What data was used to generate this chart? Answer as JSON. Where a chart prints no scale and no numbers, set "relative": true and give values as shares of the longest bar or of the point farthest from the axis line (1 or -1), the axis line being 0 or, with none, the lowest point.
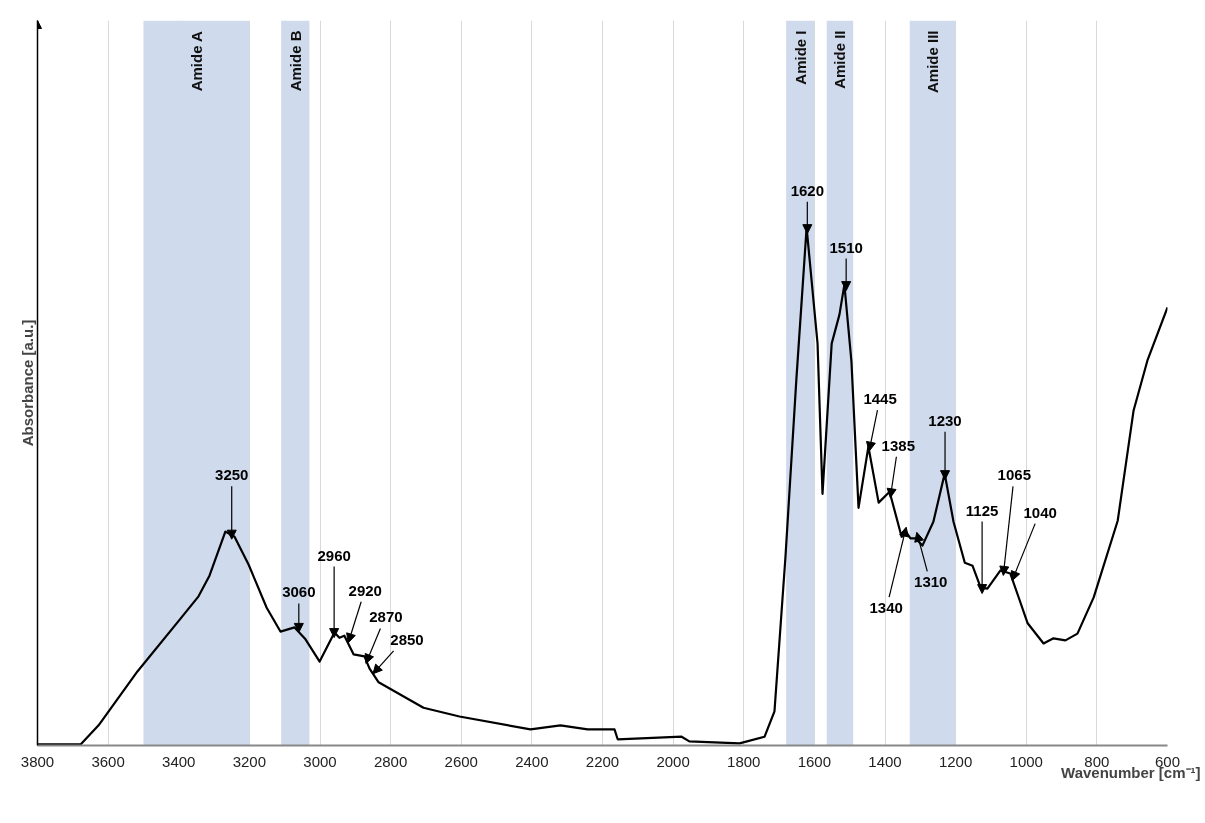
{
  "chart_data": {
    "type": "line",
    "relative": true,
    "xlabel": "Wavenumber [cm⁻¹]",
    "ylabel": "Absorbance [a.u.]",
    "xlim": [
      3800,
      600
    ],
    "xticks": [
      3800,
      3600,
      3400,
      3200,
      3000,
      2800,
      2600,
      2400,
      2200,
      2000,
      1800,
      1600,
      1400,
      1200,
      1000,
      800,
      600
    ],
    "grid": "x",
    "tick_labels": "x",
    "line_style": "solid",
    "x": [
      3800,
      3678,
      3627,
      3517,
      3395,
      3344,
      3313,
      3268,
      3242,
      3202,
      3151,
      3112,
      3072,
      3041,
      3001,
      2959,
      2945,
      2931,
      2905,
      2874,
      2860,
      2834,
      2707,
      2605,
      2404,
      2319,
      2242,
      2166,
      2157,
      1976,
      1954,
      1812,
      1741,
      1713,
      1682,
      1651,
      1622,
      1591,
      1577,
      1551,
      1529,
      1515,
      1495,
      1475,
      1447,
      1418,
      1387,
      1353,
      1339,
      1328,
      1314,
      1294,
      1263,
      1231,
      1206,
      1174,
      1152,
      1129,
      1110,
      1073,
      1045,
      996,
      951,
      923,
      889,
      855,
      809,
      741,
      696,
      657,
      600
    ],
    "series": [
      {
        "color": "#000000",
        "values": [
          0.002,
          0.002,
          0.039,
          0.143,
          0.245,
          0.288,
          0.328,
          0.413,
          0.403,
          0.349,
          0.266,
          0.22,
          0.228,
          0.205,
          0.162,
          0.218,
          0.208,
          0.212,
          0.176,
          0.172,
          0.149,
          0.122,
          0.073,
          0.056,
          0.031,
          0.039,
          0.031,
          0.031,
          0.012,
          0.017,
          0.008,
          0.004,
          0.017,
          0.066,
          0.363,
          0.707,
          1.0,
          0.776,
          0.486,
          0.776,
          0.832,
          0.89,
          0.741,
          0.459,
          0.577,
          0.469,
          0.49,
          0.403,
          0.411,
          0.4,
          0.4,
          0.386,
          0.432,
          0.525,
          0.432,
          0.353,
          0.347,
          0.305,
          0.303,
          0.338,
          0.332,
          0.236,
          0.197,
          0.207,
          0.203,
          0.216,
          0.286,
          0.434,
          0.647,
          0.743,
          0.846
        ]
      }
    ],
    "bands": [
      {
        "axis": "x",
        "from": 3500,
        "to": 3200,
        "label": "Amide A",
        "color": "#cfdbed"
      },
      {
        "axis": "x",
        "from": 3110,
        "to": 3030,
        "label": "Amide B",
        "color": "#cfdbed"
      },
      {
        "axis": "x",
        "from": 1680,
        "to": 1600,
        "label": "Amide I",
        "color": "#cfdbed"
      },
      {
        "axis": "x",
        "from": 1565,
        "to": 1490,
        "label": "Amide II",
        "color": "#cfdbed"
      },
      {
        "axis": "x",
        "from": 1330,
        "to": 1200,
        "label": "Amide III",
        "color": "#cfdbed"
      }
    ],
    "annotations": [
      {
        "text": "3250",
        "x": 3250,
        "y": 0.41
      },
      {
        "text": "3060",
        "x": 3060,
        "y": 0.23
      },
      {
        "text": "2960",
        "x": 2960,
        "y": 0.22
      },
      {
        "text": "2920",
        "x": 2920,
        "y": 0.21
      },
      {
        "text": "2870",
        "x": 2870,
        "y": 0.17
      },
      {
        "text": "2850",
        "x": 2850,
        "y": 0.15
      },
      {
        "text": "1620",
        "x": 1620,
        "y": 1.0
      },
      {
        "text": "1510",
        "x": 1510,
        "y": 0.89
      },
      {
        "text": "1445",
        "x": 1445,
        "y": 0.58
      },
      {
        "text": "1385",
        "x": 1385,
        "y": 0.49
      },
      {
        "text": "1230",
        "x": 1230,
        "y": 0.525
      },
      {
        "text": "1340",
        "x": 1340,
        "y": 0.41
      },
      {
        "text": "1310",
        "x": 1310,
        "y": 0.4
      },
      {
        "text": "1125",
        "x": 1125,
        "y": 0.305
      },
      {
        "text": "1065",
        "x": 1065,
        "y": 0.34
      },
      {
        "text": "1040",
        "x": 1040,
        "y": 0.33
      }
    ]
  }
}
